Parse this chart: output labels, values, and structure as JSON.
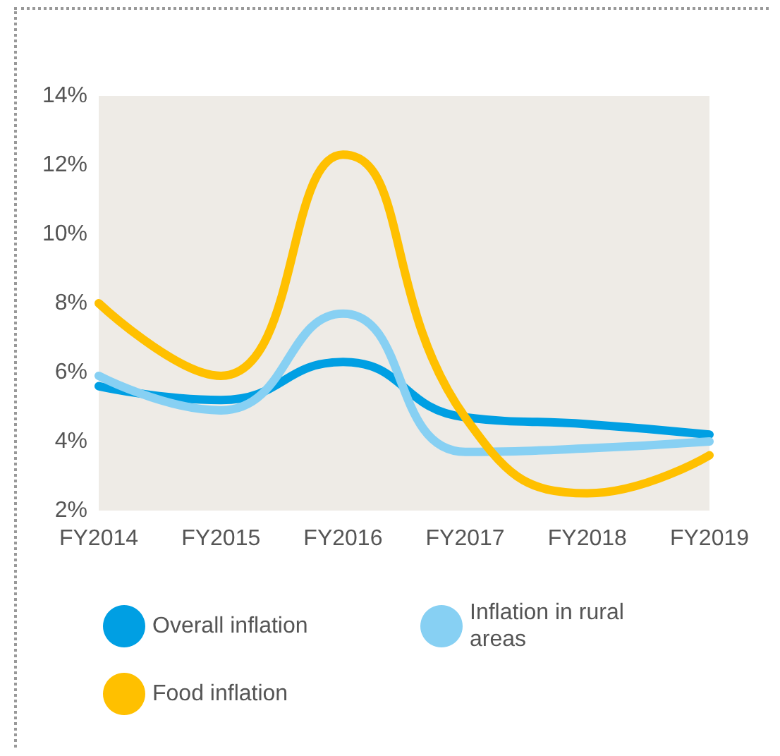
{
  "chart_data": {
    "type": "line",
    "categories": [
      "FY2014",
      "FY2015",
      "FY2016",
      "FY2017",
      "FY2018",
      "FY2019"
    ],
    "series": [
      {
        "name": "Overall inflation",
        "color": "#009fe3",
        "values": [
          5.6,
          5.2,
          6.3,
          4.7,
          4.5,
          4.2
        ]
      },
      {
        "name": "Inflation in rural areas",
        "color": "#87d0f3",
        "values": [
          5.9,
          4.9,
          7.7,
          3.7,
          3.8,
          4.0
        ]
      },
      {
        "name": "Food inflation",
        "color": "#ffc000",
        "values": [
          8.0,
          5.9,
          12.3,
          4.7,
          2.5,
          3.6
        ]
      }
    ],
    "ylim": [
      2,
      14
    ],
    "yticks": [
      {
        "value": 2,
        "label": "2%"
      },
      {
        "value": 4,
        "label": "4%"
      },
      {
        "value": 6,
        "label": "6%"
      },
      {
        "value": 8,
        "label": "8%"
      },
      {
        "value": 10,
        "label": "10%"
      },
      {
        "value": 12,
        "label": "12%"
      },
      {
        "value": 14,
        "label": "14%"
      }
    ],
    "grid": false,
    "legend": "bottom",
    "marker": "none",
    "line_style": "solid"
  }
}
